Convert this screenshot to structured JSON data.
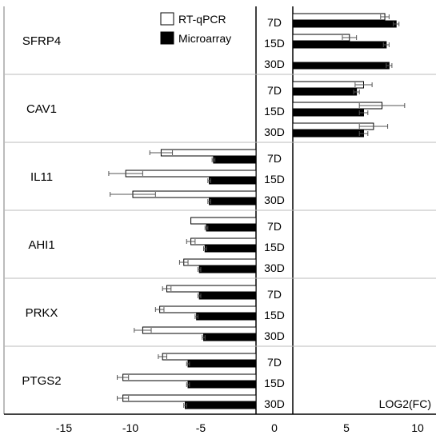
{
  "chart_data": {
    "type": "bar",
    "orientation": "horizontal",
    "xlabel": "LOG2(FC)",
    "xlim": [
      -18,
      10.8
    ],
    "xticks": [
      -15,
      -10,
      -5,
      0,
      5,
      10
    ],
    "timepoints": [
      "7D",
      "15D",
      "30D"
    ],
    "legend": {
      "placement": "top-center",
      "entries": [
        {
          "name": "RT-qPCR",
          "color": "#ffffff"
        },
        {
          "name": "Microarray",
          "color": "#000000"
        }
      ]
    },
    "genes": [
      {
        "name": "SFRP4",
        "rows": [
          {
            "tp": "7D",
            "rtqpcr": 6.5,
            "rtqpcr_err": 0.3,
            "microarray": 7.3,
            "microarray_err": 0.2
          },
          {
            "tp": "15D",
            "rtqpcr": 4.0,
            "rtqpcr_err": 0.5,
            "microarray": 6.6,
            "microarray_err": 0.2
          },
          {
            "tp": "30D",
            "rtqpcr": null,
            "rtqpcr_err": null,
            "microarray": 6.8,
            "microarray_err": 0.2
          }
        ]
      },
      {
        "name": "CAV1",
        "rows": [
          {
            "tp": "7D",
            "rtqpcr": 5.0,
            "rtqpcr_err": 0.6,
            "microarray": 4.5,
            "microarray_err": 0.2
          },
          {
            "tp": "15D",
            "rtqpcr": 6.3,
            "rtqpcr_err": 1.6,
            "microarray": 5.0,
            "microarray_err": 0.3
          },
          {
            "tp": "30D",
            "rtqpcr": 5.7,
            "rtqpcr_err": 1.0,
            "microarray": 5.0,
            "microarray_err": 0.3
          }
        ]
      },
      {
        "name": "IL11",
        "rows": [
          {
            "tp": "7D",
            "rtqpcr": -6.7,
            "rtqpcr_err": 0.8,
            "microarray": -3.0,
            "microarray_err": 0.1
          },
          {
            "tp": "15D",
            "rtqpcr": -9.2,
            "rtqpcr_err": 1.2,
            "microarray": -3.3,
            "microarray_err": 0.1
          },
          {
            "tp": "30D",
            "rtqpcr": -8.7,
            "rtqpcr_err": 1.6,
            "microarray": -3.3,
            "microarray_err": 0.1
          }
        ]
      },
      {
        "name": "AHI1",
        "rows": [
          {
            "tp": "7D",
            "rtqpcr": -4.6,
            "rtqpcr_err": 0,
            "microarray": -3.5,
            "microarray_err": 0.1
          },
          {
            "tp": "15D",
            "rtqpcr": -4.6,
            "rtqpcr_err": 0.3,
            "microarray": -3.6,
            "microarray_err": 0.1
          },
          {
            "tp": "30D",
            "rtqpcr": -5.1,
            "rtqpcr_err": 0.3,
            "microarray": -4.0,
            "microarray_err": 0.1
          }
        ]
      },
      {
        "name": "PRKX",
        "rows": [
          {
            "tp": "7D",
            "rtqpcr": -6.3,
            "rtqpcr_err": 0.3,
            "microarray": -4.0,
            "microarray_err": 0.1
          },
          {
            "tp": "15D",
            "rtqpcr": -6.8,
            "rtqpcr_err": 0.3,
            "microarray": -4.2,
            "microarray_err": 0.1
          },
          {
            "tp": "30D",
            "rtqpcr": -8.0,
            "rtqpcr_err": 0.6,
            "microarray": -3.7,
            "microarray_err": 0.1
          }
        ]
      },
      {
        "name": "PTGS2",
        "rows": [
          {
            "tp": "7D",
            "rtqpcr": -6.6,
            "rtqpcr_err": 0.3,
            "microarray": -4.8,
            "microarray_err": 0.1
          },
          {
            "tp": "15D",
            "rtqpcr": -9.4,
            "rtqpcr_err": 0.4,
            "microarray": -4.8,
            "microarray_err": 0.1
          },
          {
            "tp": "30D",
            "rtqpcr": -9.4,
            "rtqpcr_err": 0.4,
            "microarray": -5.0,
            "microarray_err": 0.1
          }
        ]
      }
    ]
  }
}
